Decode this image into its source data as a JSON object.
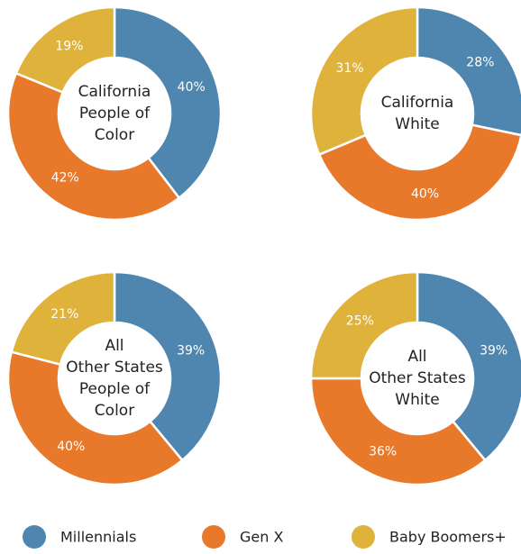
{
  "chart_data": [
    {
      "type": "pie",
      "title_lines": [
        "California",
        "People of",
        "Color"
      ],
      "categories": [
        "Millennials",
        "Gen X",
        "Baby Boomers+"
      ],
      "colors": [
        "#4e86b0",
        "#e8792b",
        "#deb23b"
      ],
      "values": [
        40,
        42,
        19
      ],
      "value_labels": [
        "40%",
        "42%",
        "19%"
      ]
    },
    {
      "type": "pie",
      "title_lines": [
        "California",
        "White"
      ],
      "categories": [
        "Millennials",
        "Gen X",
        "Baby Boomers+"
      ],
      "colors": [
        "#4e86b0",
        "#e8792b",
        "#deb23b"
      ],
      "values": [
        28,
        40,
        31
      ],
      "value_labels": [
        "28%",
        "40%",
        "31%"
      ]
    },
    {
      "type": "pie",
      "title_lines": [
        "All",
        "Other States",
        "People of",
        "Color"
      ],
      "categories": [
        "Millennials",
        "Gen X",
        "Baby Boomers+"
      ],
      "colors": [
        "#4e86b0",
        "#e8792b",
        "#deb23b"
      ],
      "values": [
        39,
        40,
        21
      ],
      "value_labels": [
        "39%",
        "40%",
        "21%"
      ]
    },
    {
      "type": "pie",
      "title_lines": [
        "All",
        "Other States",
        "White"
      ],
      "categories": [
        "Millennials",
        "Gen X",
        "Baby Boomers+"
      ],
      "colors": [
        "#4e86b0",
        "#e8792b",
        "#deb23b"
      ],
      "values": [
        39,
        36,
        25
      ],
      "value_labels": [
        "39%",
        "36%",
        "25%"
      ]
    }
  ]
}
